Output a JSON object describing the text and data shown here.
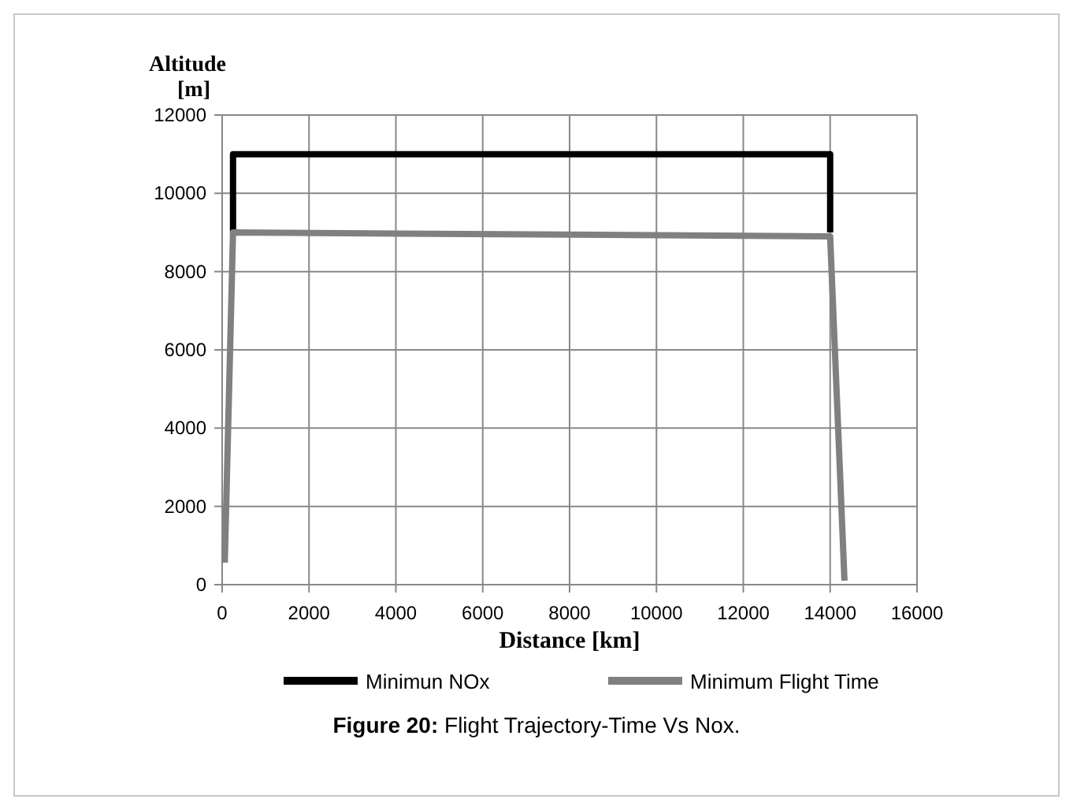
{
  "chart_data": {
    "type": "line",
    "xlabel": "Distance [km]",
    "ylabel": "Altitude [m]",
    "annotations": [
      "Figure 20: Flight Trajectory-Time Vs Nox."
    ],
    "xlim": [
      0,
      16000
    ],
    "xticks": [
      0,
      2000,
      4000,
      6000,
      8000,
      10000,
      12000,
      14000,
      16000
    ],
    "ylim": [
      0,
      12000
    ],
    "yticks": [
      0,
      2000,
      4000,
      6000,
      8000,
      10000,
      12000
    ],
    "grid": true,
    "legend": "bottom",
    "marker": "none",
    "line_style": "solid",
    "series": [
      {
        "name": "Minimun NOx",
        "color": "#000000",
        "x": [
          250,
          250,
          14000,
          14000
        ],
        "values": [
          9000,
          11000,
          11000,
          9000
        ]
      },
      {
        "name": "Minimum Flight Time",
        "color": "#808080",
        "x": [
          60,
          250,
          14000,
          14330
        ],
        "values": [
          560,
          9000,
          8900,
          100
        ]
      }
    ]
  }
}
